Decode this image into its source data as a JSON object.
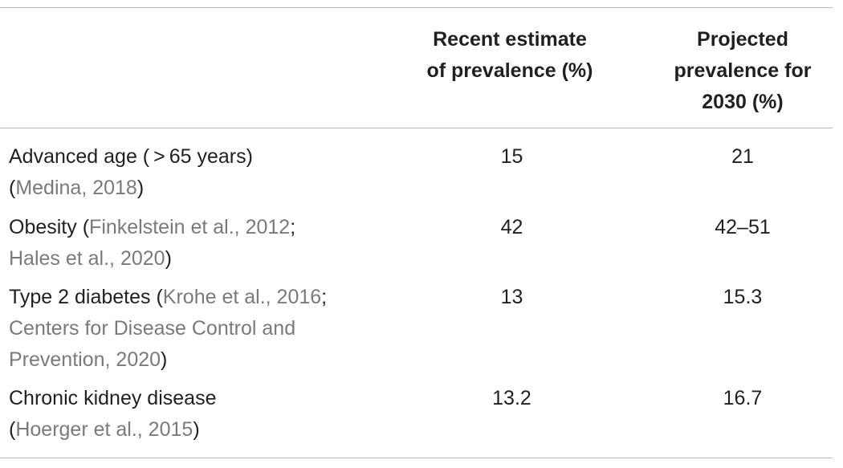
{
  "table": {
    "headers": {
      "recent_line1": "Recent estimate",
      "recent_line2": "of prevalence (%)",
      "projected_line1": "Projected",
      "projected_line2": "prevalence for",
      "projected_line3": "2030 (%)"
    },
    "rows": [
      {
        "factor": "Advanced age ( > 65 years)",
        "refs": [
          {
            "open": "(",
            "text": "Medina, 2018",
            "close": ")"
          }
        ],
        "recent": "15",
        "projected": "21"
      },
      {
        "factor": "Obesity",
        "ref_line1": "Finkelstein et al., 2012",
        "ref_line2": "Hales et al., 2020",
        "recent": "42",
        "projected": "42–51"
      },
      {
        "factor": "Type 2 diabetes",
        "ref_line1": "Krohe et al., 2016",
        "ref_line2": "Centers for Disease Control and",
        "ref_line3": "Prevention, 2020",
        "recent": "13",
        "projected": "15.3"
      },
      {
        "factor": "Chronic kidney disease",
        "ref_line1": "Hoerger et al., 2015",
        "recent": "13.2",
        "projected": "16.7"
      }
    ]
  }
}
